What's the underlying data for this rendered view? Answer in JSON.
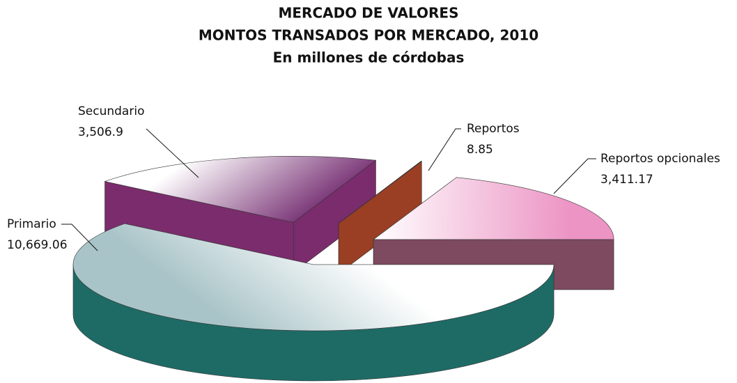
{
  "chart_data": {
    "type": "pie3d",
    "title": "MERCADO DE VALORES",
    "subtitle": "MONTOS TRANSADOS POR MERCADO, 2010",
    "units_label": "En millones de córdobas",
    "categories": [
      "Primario",
      "Secundario",
      "Reportos",
      "Reportos opcionales"
    ],
    "values": [
      10669.06,
      3506.9,
      8.85,
      3411.17
    ],
    "value_labels": [
      "10,669.06",
      "3,506.9",
      "8.85",
      "3,411.17"
    ],
    "colors": [
      "#a9c4c8",
      "#7d3a7a",
      "#a3452a",
      "#ec94c4"
    ],
    "side_colors": [
      "#1e6b66",
      "#7a2c6c",
      "#9a3f24",
      "#7d4a60"
    ]
  }
}
